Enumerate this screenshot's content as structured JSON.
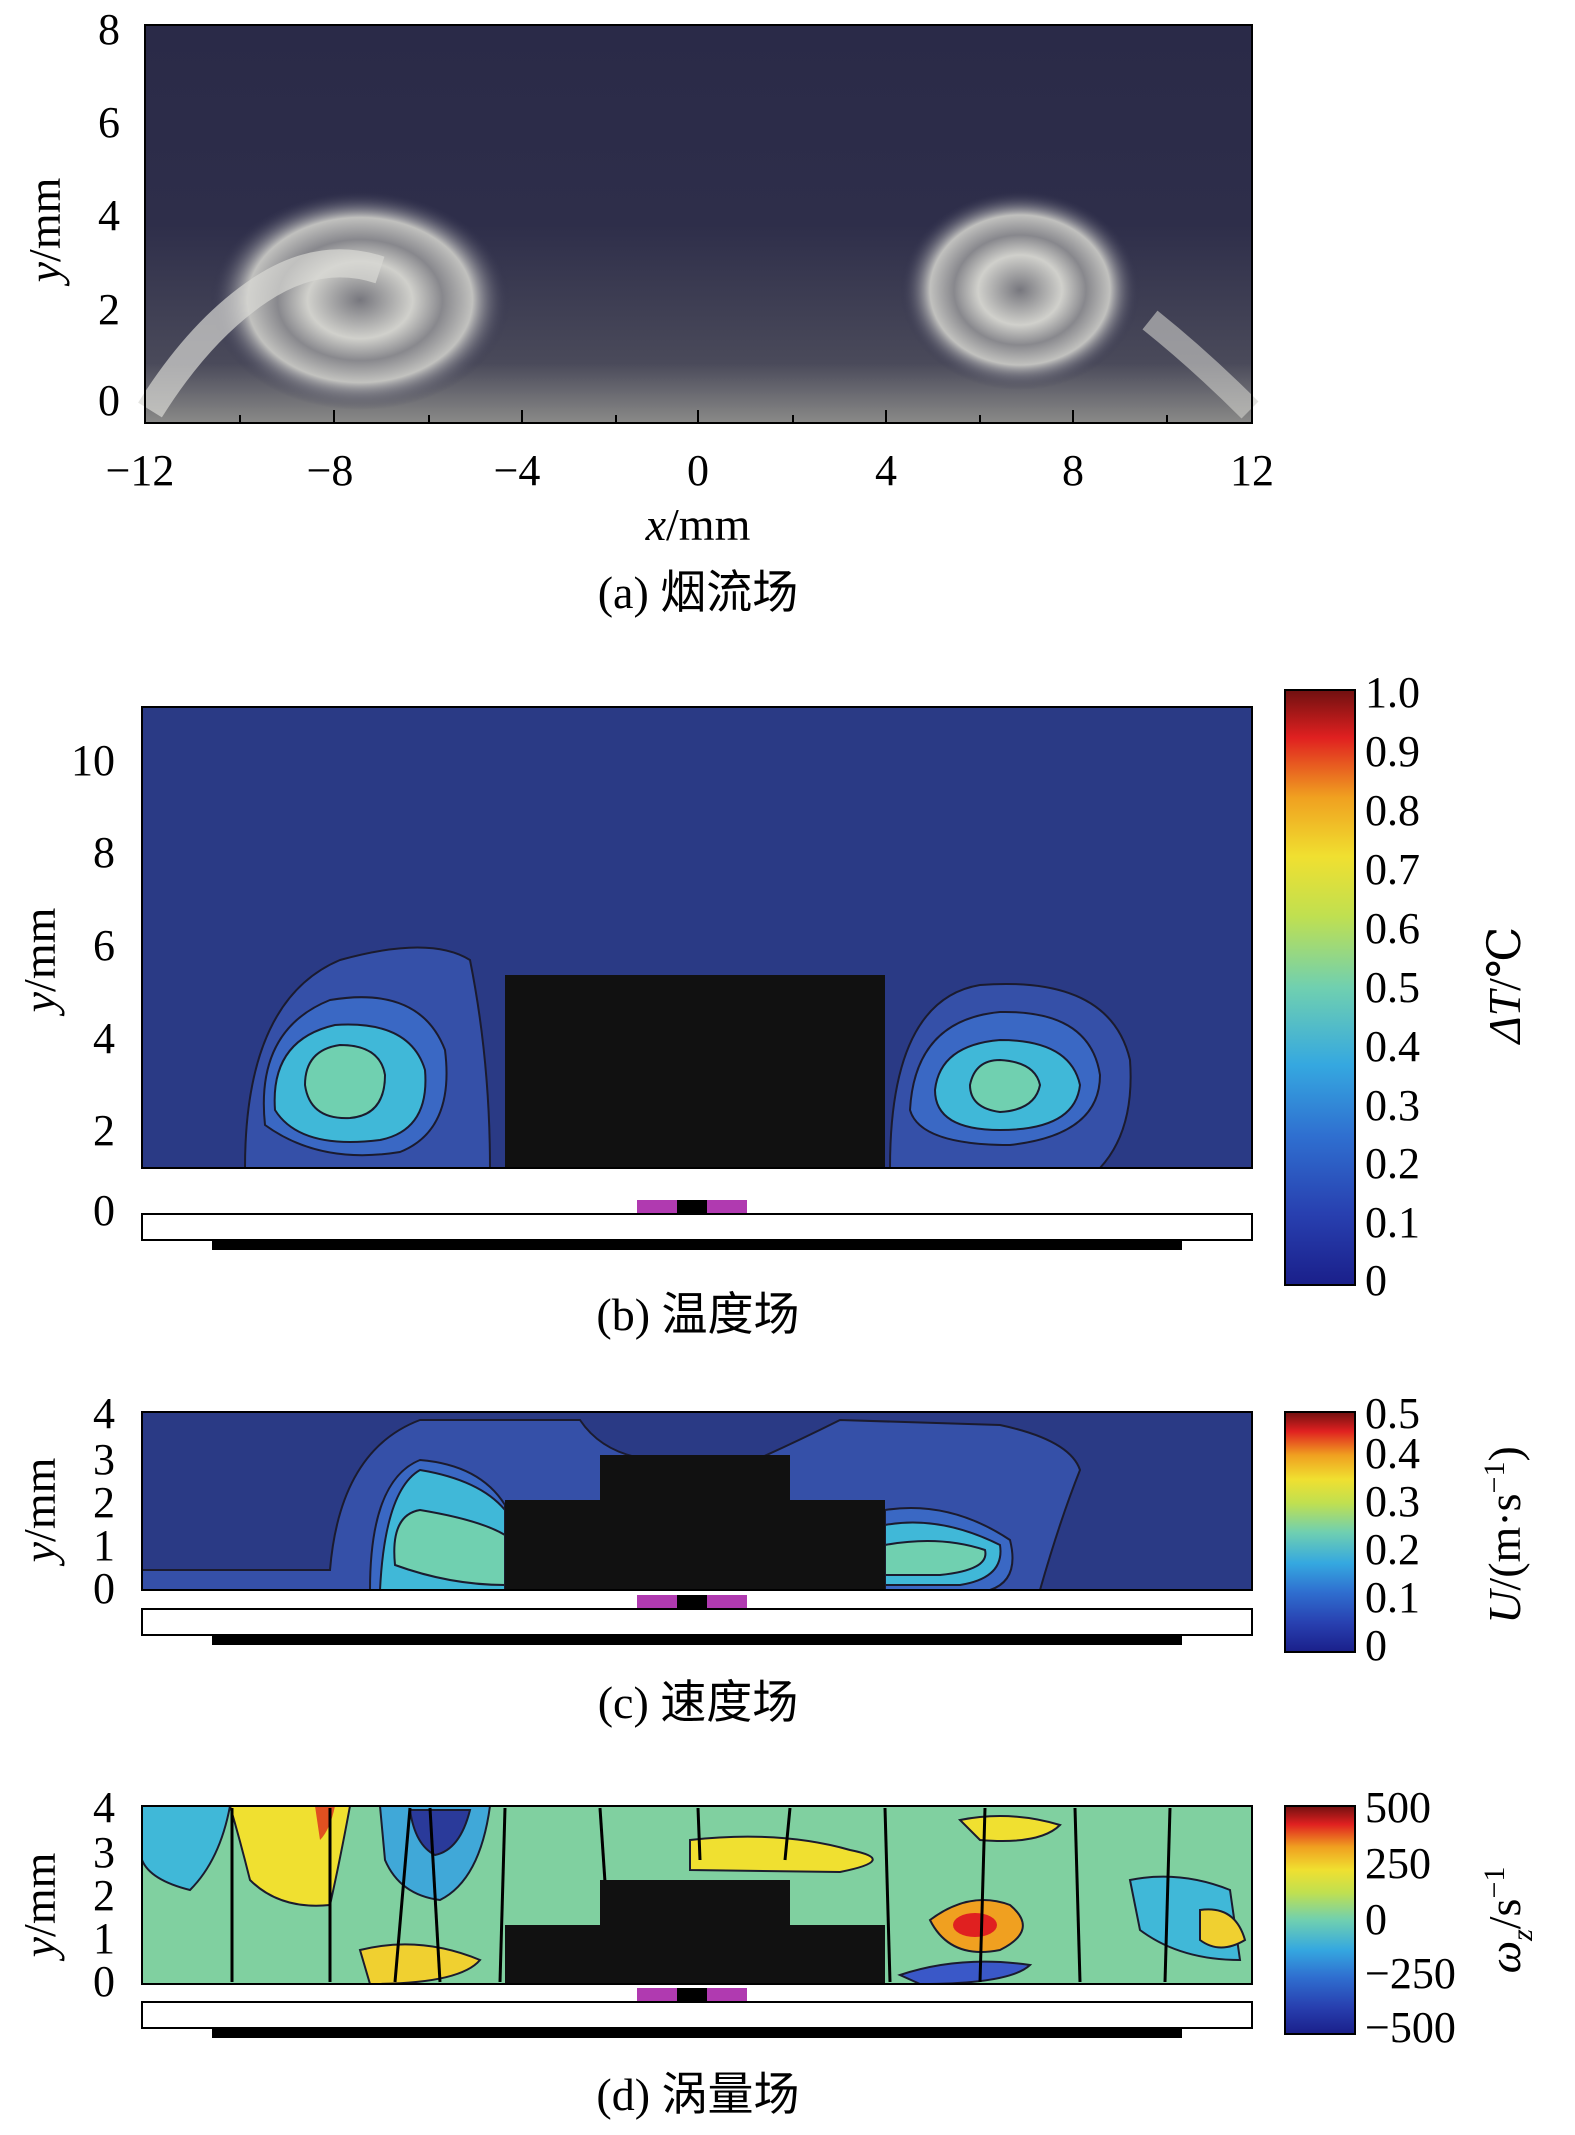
{
  "figure": {
    "panels": [
      {
        "caption": "(a) 烟流场",
        "xlabel_var": "x",
        "xlabel_unit": "/mm",
        "ylabel_var": "y",
        "ylabel_unit": "/mm",
        "xticks": [
          "−12",
          "−8",
          "−4",
          "0",
          "4",
          "8",
          "12"
        ],
        "yticks": [
          "0",
          "2",
          "4",
          "6",
          "8"
        ]
      },
      {
        "caption": "(b) 温度场",
        "ylabel_var": "y",
        "ylabel_unit": "/mm",
        "yticks": [
          "0",
          "2",
          "4",
          "6",
          "8",
          "10"
        ],
        "colorbar_var": "ΔT",
        "colorbar_unit": "/℃",
        "colorbar_ticks": [
          "0",
          "0.1",
          "0.2",
          "0.3",
          "0.4",
          "0.5",
          "0.6",
          "0.7",
          "0.8",
          "0.9",
          "1.0"
        ]
      },
      {
        "caption": "(c) 速度场",
        "ylabel_var": "y",
        "ylabel_unit": "/mm",
        "yticks": [
          "0",
          "1",
          "2",
          "3",
          "4"
        ],
        "colorbar_var": "U",
        "colorbar_unit": "/(m·s",
        "colorbar_exp": "−1",
        "colorbar_close": ")",
        "colorbar_ticks": [
          "0",
          "0.1",
          "0.2",
          "0.3",
          "0.4",
          "0.5"
        ]
      },
      {
        "caption": "(d) 涡量场",
        "ylabel_var": "y",
        "ylabel_unit": "/mm",
        "yticks": [
          "0",
          "1",
          "2",
          "3",
          "4"
        ],
        "colorbar_var": "ω",
        "colorbar_sub": "z",
        "colorbar_unit": "/s",
        "colorbar_exp": "−1",
        "colorbar_ticks": [
          "−500",
          "−250",
          "0",
          "250",
          "500"
        ]
      }
    ],
    "colors": {
      "background_dark": "#2a3a85",
      "contour_blue": "#3550a8",
      "contour_light": "#4a9ad8",
      "contour_cyan": "#40b8d8",
      "contour_green": "#70d0b0",
      "block": "#111111",
      "heater": "#b03ab0"
    }
  }
}
